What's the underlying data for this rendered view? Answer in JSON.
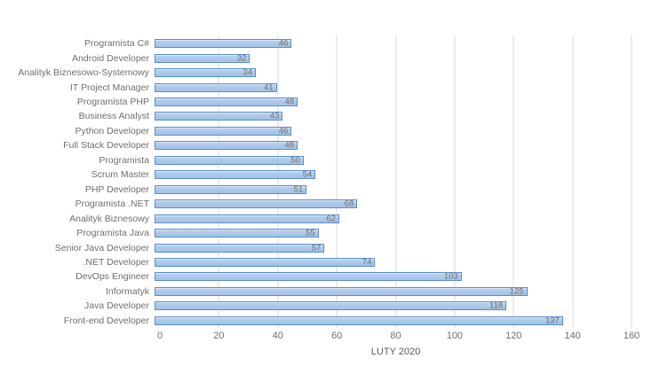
{
  "colors": {
    "bar-fill": "#ADC9EA",
    "bar-fill-light": "#BCD4F0",
    "bar-border": "#5B8DC9",
    "grid": "#D9D9D9",
    "text": "#6E6E6E",
    "value-text": "#707070",
    "title-text": "#595959",
    "bg": "#FFFFFF"
  },
  "chart_data": {
    "type": "bar",
    "orientation": "horizontal",
    "title": "",
    "xlabel": "LUTY 2020",
    "ylabel": "",
    "xlim": [
      0,
      160
    ],
    "xticks": [
      0,
      20,
      40,
      60,
      80,
      100,
      120,
      140,
      160
    ],
    "grid": true,
    "legend": false,
    "value_labels": "inside-end",
    "categories": [
      "Programista C#",
      "Android Developer",
      "Analityk Biznesowo-Systemowy",
      "IT Project Manager",
      "Programista PHP",
      "Business Analyst",
      "Python Developer",
      "Full Stack Developer",
      "Programista",
      "Scrum Master",
      "PHP Developer",
      "Programista .NET",
      "Analityk Biznesowy",
      "Programista Java",
      "Senior Java Developer",
      ".NET Developer",
      "DevOps Engineer",
      "Informatyk",
      "Java Developer",
      "Front-end Developer"
    ],
    "values": [
      46,
      32,
      34,
      41,
      48,
      43,
      46,
      48,
      50,
      54,
      51,
      68,
      62,
      55,
      57,
      74,
      103,
      125,
      118,
      137
    ]
  }
}
